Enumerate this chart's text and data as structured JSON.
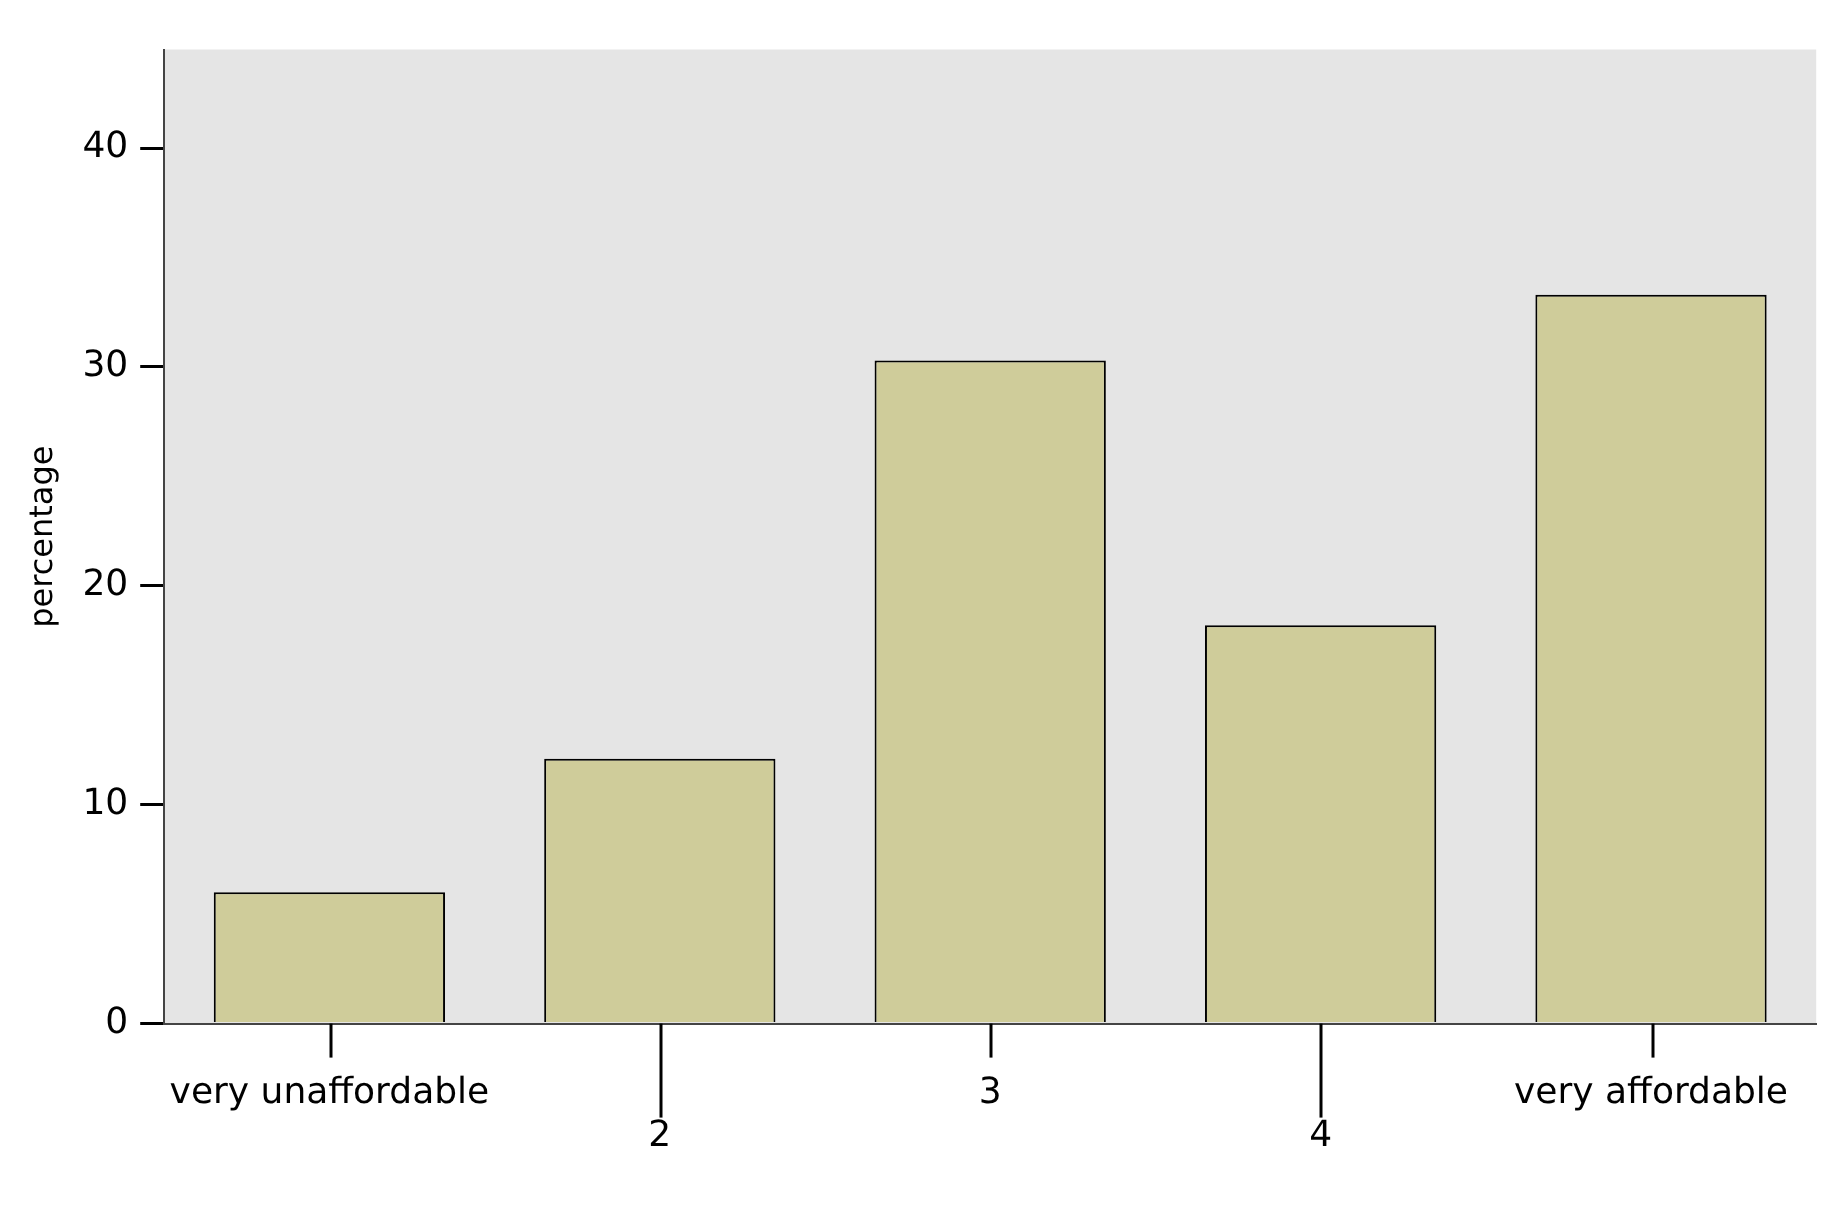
{
  "chart_data": {
    "type": "bar",
    "ylabel": "percentage",
    "categories": [
      "very unaffordable",
      "2",
      "3",
      "4",
      "very affordable"
    ],
    "values": [
      6.0,
      12.1,
      30.3,
      18.2,
      33.3
    ],
    "color": "#cfcc9a",
    "ylim": [
      0,
      44.5
    ],
    "yticks": [
      0,
      10,
      20,
      30,
      40
    ]
  }
}
